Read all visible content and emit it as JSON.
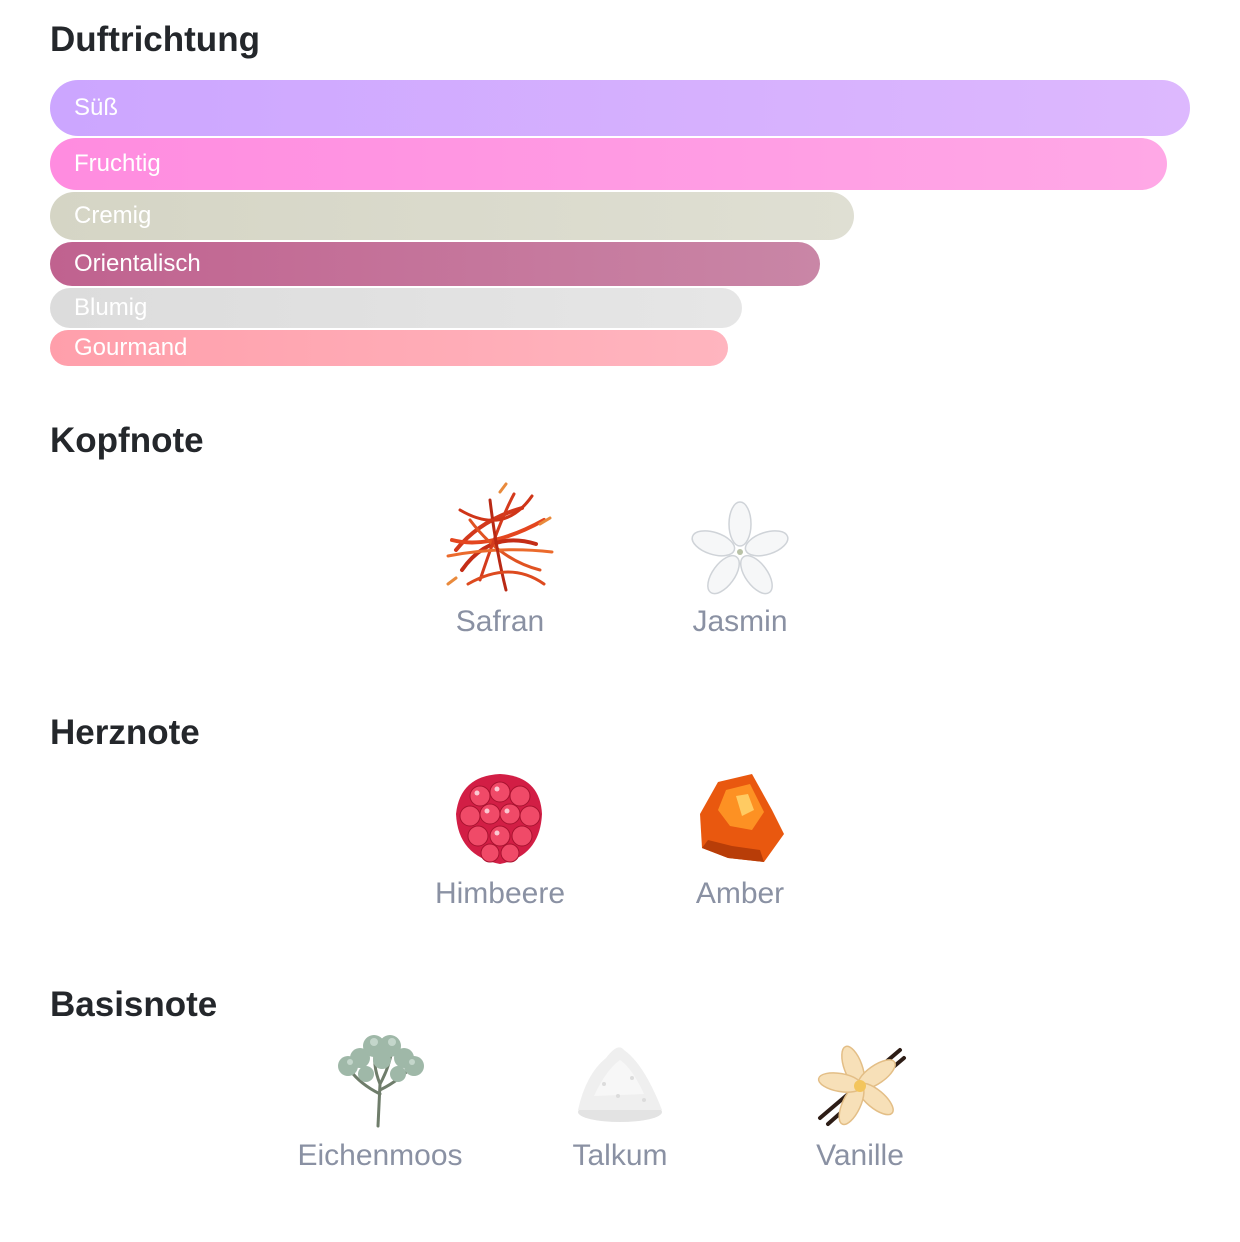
{
  "accords": {
    "title": "Duftrichtung",
    "items": [
      {
        "label": "Süß",
        "level": 1.0,
        "color_from": "#cca6ff",
        "color_to": "#ddb8fe"
      },
      {
        "label": "Fruchtig",
        "level": 0.98,
        "color_from": "#ff8ce0",
        "color_to": "#ffa8e6"
      },
      {
        "label": "Cremig",
        "level": 0.705,
        "color_from": "#d5d5c5",
        "color_to": "#dfdfd3"
      },
      {
        "label": "Orientalisch",
        "level": 0.675,
        "color_from": "#c0628f",
        "color_to": "#c986a6"
      },
      {
        "label": "Blumig",
        "level": 0.607,
        "color_from": "#dcdcdc",
        "color_to": "#e6e6e6"
      },
      {
        "label": "Gourmand",
        "level": 0.595,
        "color_from": "#ff9fab",
        "color_to": "#ffb5bf"
      }
    ]
  },
  "top_notes": {
    "title": "Kopfnote",
    "items": [
      {
        "label": "Safran",
        "icon": "saffron-icon"
      },
      {
        "label": "Jasmin",
        "icon": "jasmine-icon"
      }
    ]
  },
  "heart_notes": {
    "title": "Herznote",
    "items": [
      {
        "label": "Himbeere",
        "icon": "raspberry-icon"
      },
      {
        "label": "Amber",
        "icon": "amber-icon"
      }
    ]
  },
  "base_notes": {
    "title": "Basisnote",
    "items": [
      {
        "label": "Eichenmoos",
        "icon": "oakmoss-icon"
      },
      {
        "label": "Talkum",
        "icon": "talc-icon"
      },
      {
        "label": "Vanille",
        "icon": "vanilla-icon"
      }
    ]
  }
}
